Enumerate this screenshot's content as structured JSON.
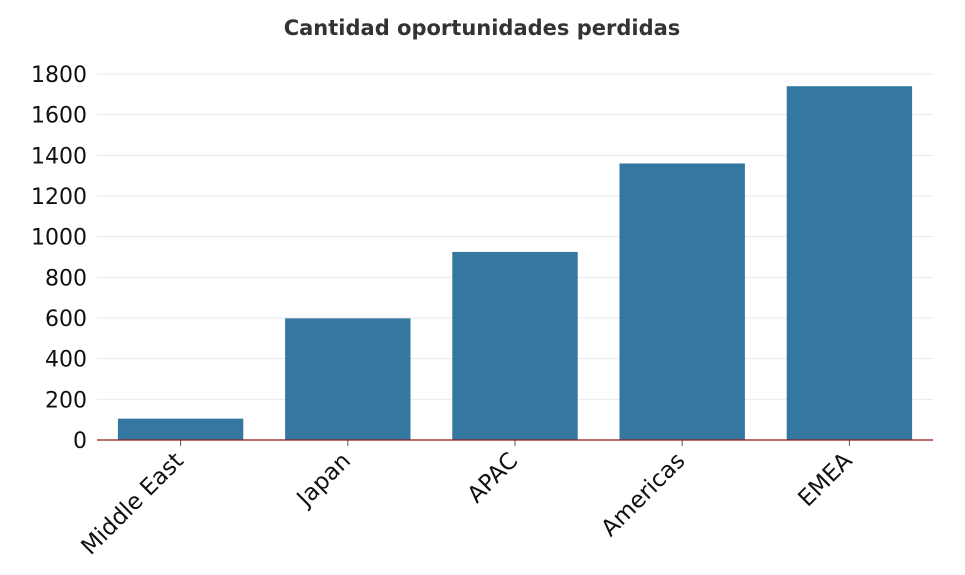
{
  "chart_data": {
    "type": "bar",
    "title": "Cantidad oportunidades perdidas",
    "xlabel": "",
    "ylabel": "",
    "categories": [
      "Middle East",
      "Japan",
      "APAC",
      "Americas",
      "EMEA"
    ],
    "values": [
      105,
      598,
      925,
      1360,
      1740
    ],
    "ylim": [
      0,
      1800
    ],
    "yticks": [
      0,
      200,
      400,
      600,
      800,
      1000,
      1200,
      1400,
      1600,
      1800
    ],
    "grid": true,
    "legend": "none",
    "bar_color": "#3477a1",
    "axis_color": "#8b1a1a"
  }
}
